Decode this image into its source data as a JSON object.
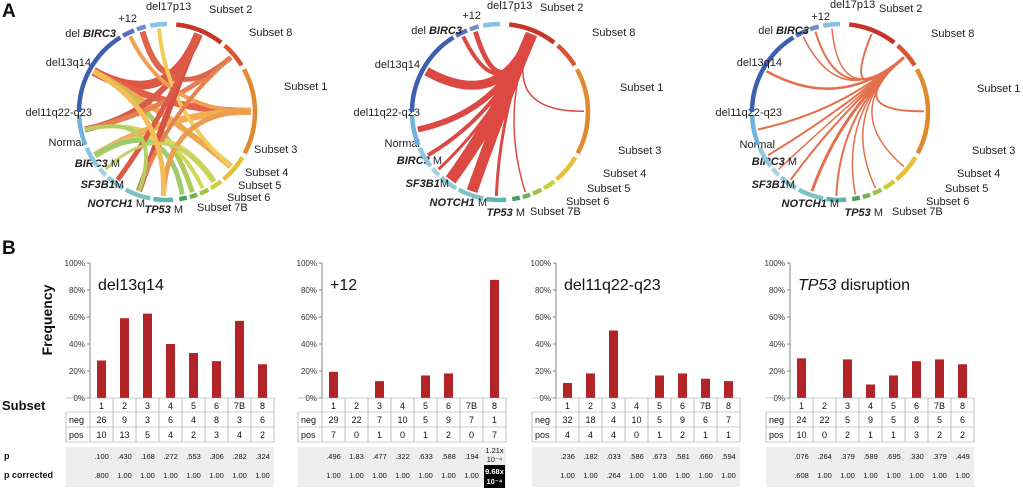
{
  "panels": {
    "a": "A",
    "b": "B"
  },
  "chord": {
    "segments": [
      {
        "label": "Subset 2",
        "color": "#c73528"
      },
      {
        "label": "Subset 8",
        "color": "#d8552e"
      },
      {
        "label": "Subset 1",
        "color": "#e2882e"
      },
      {
        "label": "Subset 3",
        "color": "#e6c03a"
      },
      {
        "label": "Subset 4",
        "color": "#c8cf3a"
      },
      {
        "label": "Subset 5",
        "color": "#9bc444"
      },
      {
        "label": "Subset 6",
        "color": "#6cb34e"
      },
      {
        "label": "Subset 7B",
        "color": "#4a9d63"
      },
      {
        "label": "TP53 M",
        "color": "#5fb6b0"
      },
      {
        "label": "NOTCH1 M",
        "color": "#7ec2c6"
      },
      {
        "label": "SF3B1M",
        "color": "#8ecbd6"
      },
      {
        "label": "BIRC3 M",
        "color": "#a7d3e2"
      },
      {
        "label": "Normal",
        "color": "#8ec7df"
      },
      {
        "label": "del11q22-q23",
        "color": "#6fb2db"
      },
      {
        "label": "del13q14",
        "color": "#3c5fae"
      },
      {
        "label": "del BIRC3",
        "color": "#5a6fbf"
      },
      {
        "label": "+12",
        "color": "#6c8fcc"
      },
      {
        "label": "del17p13",
        "color": "#86c1e6"
      }
    ],
    "diagrams": [
      {
        "ribbons": [
          {
            "from": 14,
            "to": 0,
            "color": "#d93a24",
            "width": 9
          },
          {
            "from": 14,
            "to": 2,
            "color": "#e2452a",
            "width": 7
          },
          {
            "from": 14,
            "to": 3,
            "color": "#e89a32",
            "width": 6
          },
          {
            "from": 14,
            "to": 6,
            "color": "#9fc240",
            "width": 5
          },
          {
            "from": 13,
            "to": 0,
            "color": "#d2402a",
            "width": 6
          },
          {
            "from": 13,
            "to": 1,
            "color": "#e06a34",
            "width": 5
          },
          {
            "from": 13,
            "to": 5,
            "color": "#c9cf3e",
            "width": 4
          },
          {
            "from": 12,
            "to": 2,
            "color": "#f0a13a",
            "width": 7
          },
          {
            "from": 12,
            "to": 4,
            "color": "#d8d048",
            "width": 6
          },
          {
            "from": 12,
            "to": 7,
            "color": "#8cc25a",
            "width": 5
          },
          {
            "from": 16,
            "to": 0,
            "color": "#e0382a",
            "width": 6
          },
          {
            "from": 16,
            "to": 1,
            "color": "#d84d2e",
            "width": 5
          },
          {
            "from": 15,
            "to": 2,
            "color": "#ee8f36",
            "width": 4
          },
          {
            "from": 17,
            "to": 3,
            "color": "#f0c23c",
            "width": 4
          },
          {
            "from": 9,
            "to": 0,
            "color": "#cf3326",
            "width": 6
          },
          {
            "from": 9,
            "to": 1,
            "color": "#e36c30",
            "width": 4
          },
          {
            "from": 8,
            "to": 2,
            "color": "#e88d32",
            "width": 5
          },
          {
            "from": 10,
            "to": 0,
            "color": "#d63f28",
            "width": 5
          },
          {
            "from": 11,
            "to": 4,
            "color": "#b8cc48",
            "width": 3
          },
          {
            "from": 14,
            "to": 8,
            "color": "#f2b23a",
            "width": 5
          },
          {
            "from": 13,
            "to": 9,
            "color": "#a6c74a",
            "width": 4
          }
        ]
      },
      {
        "ribbons": [
          {
            "from": 14,
            "to": 0,
            "color": "#d62a22",
            "width": 9
          },
          {
            "from": 13,
            "to": 0,
            "color": "#d62a22",
            "width": 6
          },
          {
            "from": 15,
            "to": 0,
            "color": "#d62a22",
            "width": 4
          },
          {
            "from": 16,
            "to": 0,
            "color": "#d62a22",
            "width": 5
          },
          {
            "from": 12,
            "to": 0,
            "color": "#d62a22",
            "width": 4
          },
          {
            "from": 10,
            "to": 0,
            "color": "#d62a22",
            "width": 12
          },
          {
            "from": 9,
            "to": 0,
            "color": "#d62a22",
            "width": 11
          },
          {
            "from": 8,
            "to": 0,
            "color": "#d62a22",
            "width": 3
          },
          {
            "from": 11,
            "to": 0,
            "color": "#d62a22",
            "width": 3
          },
          {
            "from": 2,
            "to": 0,
            "color": "#d62a22",
            "width": 1.5
          },
          {
            "from": 6,
            "to": 0,
            "color": "#d62a22",
            "width": 1.5
          }
        ]
      },
      {
        "ribbons": [
          {
            "from": 14,
            "to": 1,
            "color": "#e0572e",
            "width": 2.5
          },
          {
            "from": 13,
            "to": 1,
            "color": "#e0572e",
            "width": 2
          },
          {
            "from": 12,
            "to": 1,
            "color": "#e0572e",
            "width": 2
          },
          {
            "from": 11,
            "to": 1,
            "color": "#e0572e",
            "width": 1.5
          },
          {
            "from": 10,
            "to": 1,
            "color": "#e0572e",
            "width": 2
          },
          {
            "from": 9,
            "to": 1,
            "color": "#e0572e",
            "width": 3
          },
          {
            "from": 8,
            "to": 1,
            "color": "#e0572e",
            "width": 2
          },
          {
            "from": 7,
            "to": 1,
            "color": "#e0572e",
            "width": 1.5
          },
          {
            "from": 2,
            "to": 1,
            "color": "#e0572e",
            "width": 2
          },
          {
            "from": 3,
            "to": 1,
            "color": "#e0572e",
            "width": 1.5
          },
          {
            "from": 5,
            "to": 1,
            "color": "#e0572e",
            "width": 1.5
          },
          {
            "from": 15,
            "to": 1,
            "color": "#e0572e",
            "width": 1.5
          },
          {
            "from": 16,
            "to": 1,
            "color": "#e0572e",
            "width": 2
          },
          {
            "from": 17,
            "to": 1,
            "color": "#e0572e",
            "width": 1.5
          },
          {
            "from": 0,
            "to": 1,
            "color": "#e0572e",
            "width": 2
          }
        ]
      }
    ]
  },
  "row_labels": {
    "frequency": "Frequency",
    "subset": "Subset",
    "neg": "neg",
    "pos": "pos",
    "p": "p",
    "p_corrected": "p corrected"
  },
  "bar_color": "#b22428",
  "highlight_color": "#000000",
  "chart_data": [
    {
      "type": "bar",
      "title": "del13q14",
      "ylabel": "Frequency",
      "xlabel": "Subset",
      "ylim": [
        0,
        100
      ],
      "yticks": [
        "0%",
        "20%",
        "40%",
        "60%",
        "80%",
        "100%"
      ],
      "categories": [
        "1",
        "2",
        "3",
        "4",
        "5",
        "6",
        "7B",
        "8"
      ],
      "values": [
        27.8,
        59.1,
        62.5,
        40.0,
        33.3,
        27.3,
        57.1,
        25.0
      ],
      "neg": [
        "26",
        "9",
        "3",
        "6",
        "4",
        "8",
        "3",
        "6"
      ],
      "pos": [
        "10",
        "13",
        "5",
        "4",
        "2",
        "3",
        "4",
        "2"
      ],
      "p": [
        ".100",
        ".430",
        ".168",
        ".272",
        ".553",
        ".306",
        ".282",
        ".324"
      ],
      "p_corrected": [
        ".800",
        "1.00",
        "1.00",
        "1.00",
        "1.00",
        "1.00",
        "1.00",
        "1.00"
      ]
    },
    {
      "type": "bar",
      "title": "+12",
      "ylim": [
        0,
        100
      ],
      "yticks": [
        "0%",
        "20%",
        "40%",
        "60%",
        "80%",
        "100%"
      ],
      "categories": [
        "1",
        "2",
        "3",
        "4",
        "5",
        "6",
        "7B",
        "8"
      ],
      "values": [
        19.4,
        0,
        12.5,
        0,
        16.7,
        18.2,
        0,
        87.5
      ],
      "neg": [
        "29",
        "22",
        "7",
        "10",
        "5",
        "9",
        "7",
        "1"
      ],
      "pos": [
        "7",
        "0",
        "1",
        "0",
        "1",
        "2",
        "0",
        "7"
      ],
      "p": [
        ".496",
        "1.83",
        ".477",
        ".322",
        ".633",
        ".588",
        ".194",
        "1.21x10⁻⁴"
      ],
      "p_corrected": [
        "1.00",
        "1.00",
        "1.00",
        "1.00",
        "1.00",
        "1.00",
        "1.00",
        "9.68x10⁻⁴"
      ],
      "highlight_index": 7
    },
    {
      "type": "bar",
      "title": "del11q22-q23",
      "ylim": [
        0,
        100
      ],
      "yticks": [
        "0%",
        "20%",
        "40%",
        "60%",
        "80%",
        "100%"
      ],
      "categories": [
        "1",
        "2",
        "3",
        "4",
        "5",
        "6",
        "7B",
        "8"
      ],
      "values": [
        11.1,
        18.2,
        50.0,
        0,
        16.7,
        18.2,
        14.3,
        12.5
      ],
      "neg": [
        "32",
        "18",
        "4",
        "10",
        "5",
        "9",
        "6",
        "7"
      ],
      "pos": [
        "4",
        "4",
        "4",
        "0",
        "1",
        "2",
        "1",
        "1"
      ],
      "p": [
        ".236",
        ".182",
        ".033",
        ".586",
        ".673",
        ".581",
        ".660",
        ".594"
      ],
      "p_corrected": [
        "1.00",
        "1.00",
        ".264",
        "1.00",
        "1.00",
        "1.00",
        "1.00",
        "1.00"
      ]
    },
    {
      "type": "bar",
      "title_italic": "TP53",
      "title_rest": " disruption",
      "ylim": [
        0,
        100
      ],
      "yticks": [
        "0%",
        "20%",
        "40%",
        "60%",
        "80%",
        "100%"
      ],
      "categories": [
        "1",
        "2",
        "3",
        "4",
        "5",
        "6",
        "7B",
        "8"
      ],
      "values": [
        29.4,
        0,
        28.6,
        10.0,
        16.7,
        27.3,
        28.6,
        25.0
      ],
      "neg": [
        "24",
        "22",
        "5",
        "9",
        "5",
        "8",
        "5",
        "6"
      ],
      "pos": [
        "10",
        "0",
        "2",
        "1",
        "1",
        "3",
        "2",
        "2"
      ],
      "p": [
        ".076",
        ".264",
        ".379",
        ".589",
        ".695",
        ".330",
        ".379",
        ".449"
      ],
      "p_corrected": [
        ".608",
        "1.00",
        "1.00",
        "1.00",
        "1.00",
        "1.00",
        "1.00",
        "1.00"
      ]
    }
  ]
}
